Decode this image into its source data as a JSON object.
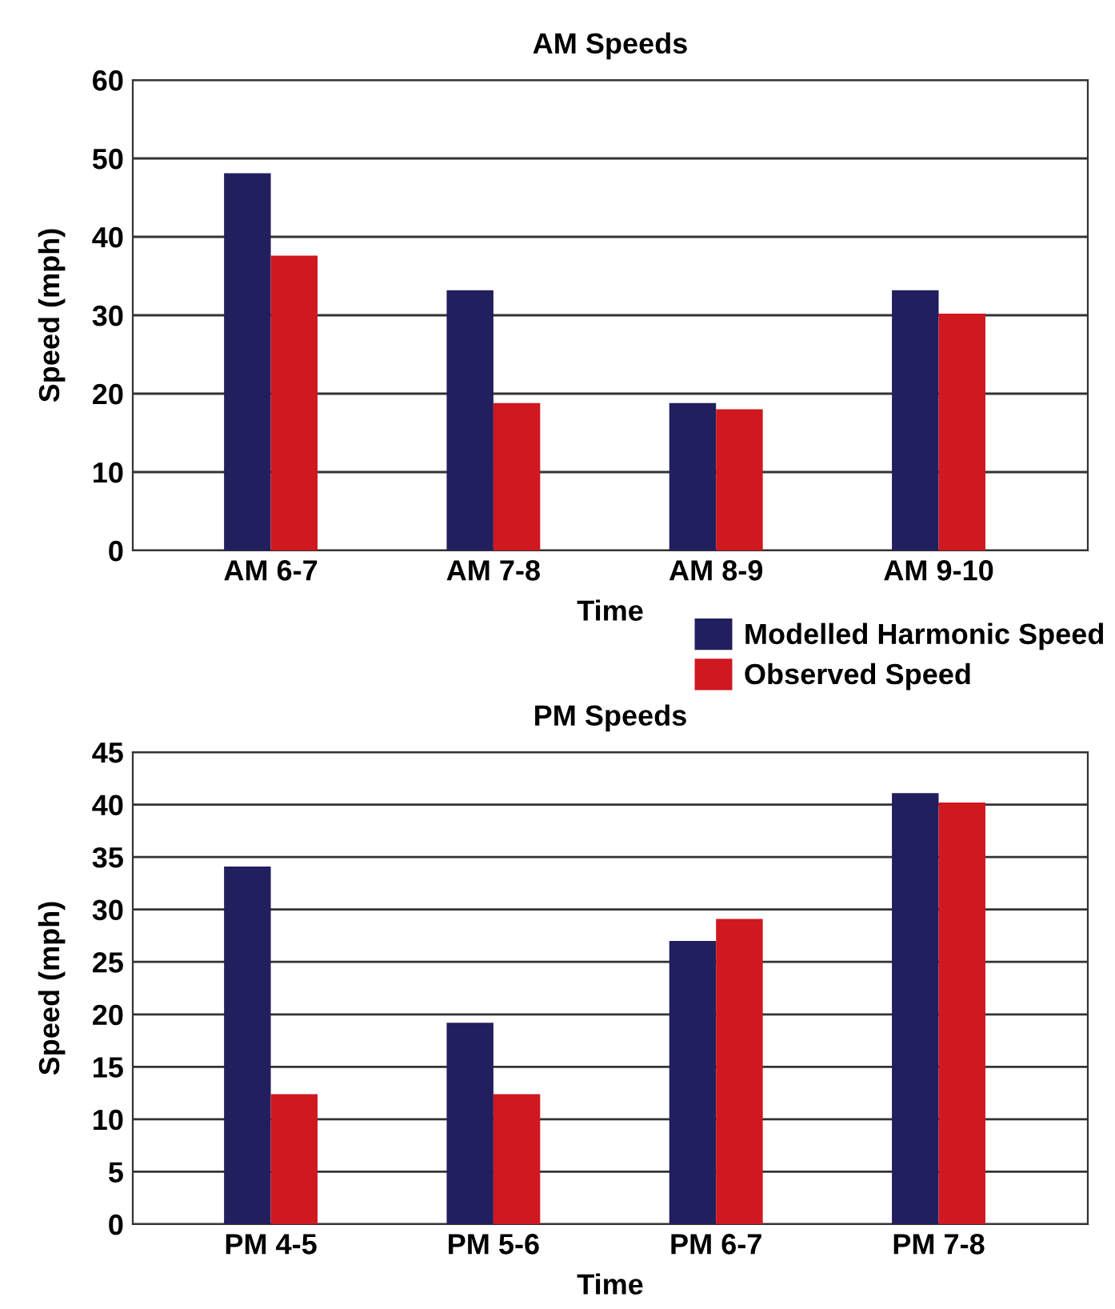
{
  "chart_data": [
    {
      "type": "bar",
      "title": "AM Speeds",
      "xlabel": "Time",
      "ylabel": "Speed (mph)",
      "categories": [
        "AM 6-7",
        "AM 7-8",
        "AM 8-9",
        "AM 9-10"
      ],
      "series": [
        {
          "name": "Modelled Harmonic Speed",
          "color": "#221f5e",
          "values": [
            48.1,
            33.2,
            18.8,
            33.2
          ]
        },
        {
          "name": "Observed Speed",
          "color": "#cf1820",
          "values": [
            37.6,
            18.8,
            18.0,
            30.2
          ]
        }
      ],
      "ylim": [
        0,
        60
      ],
      "yticks": [
        0,
        10,
        20,
        30,
        40,
        50,
        60
      ],
      "grid": "y",
      "legend": "bottom right"
    },
    {
      "type": "bar",
      "title": "PM Speeds",
      "xlabel": "Time",
      "ylabel": "Speed (mph)",
      "categories": [
        "PM 4-5",
        "PM 5-6",
        "PM 6-7",
        "PM 7-8"
      ],
      "series": [
        {
          "color": "#221f5e",
          "values": [
            34.1,
            19.2,
            27.0,
            41.1
          ]
        },
        {
          "color": "#cf1820",
          "values": [
            12.4,
            12.4,
            29.1,
            40.2
          ]
        }
      ],
      "ylim": [
        0,
        45
      ],
      "yticks": [
        0,
        5,
        10,
        15,
        20,
        25,
        30,
        35,
        40,
        45
      ],
      "grid": "y"
    }
  ]
}
